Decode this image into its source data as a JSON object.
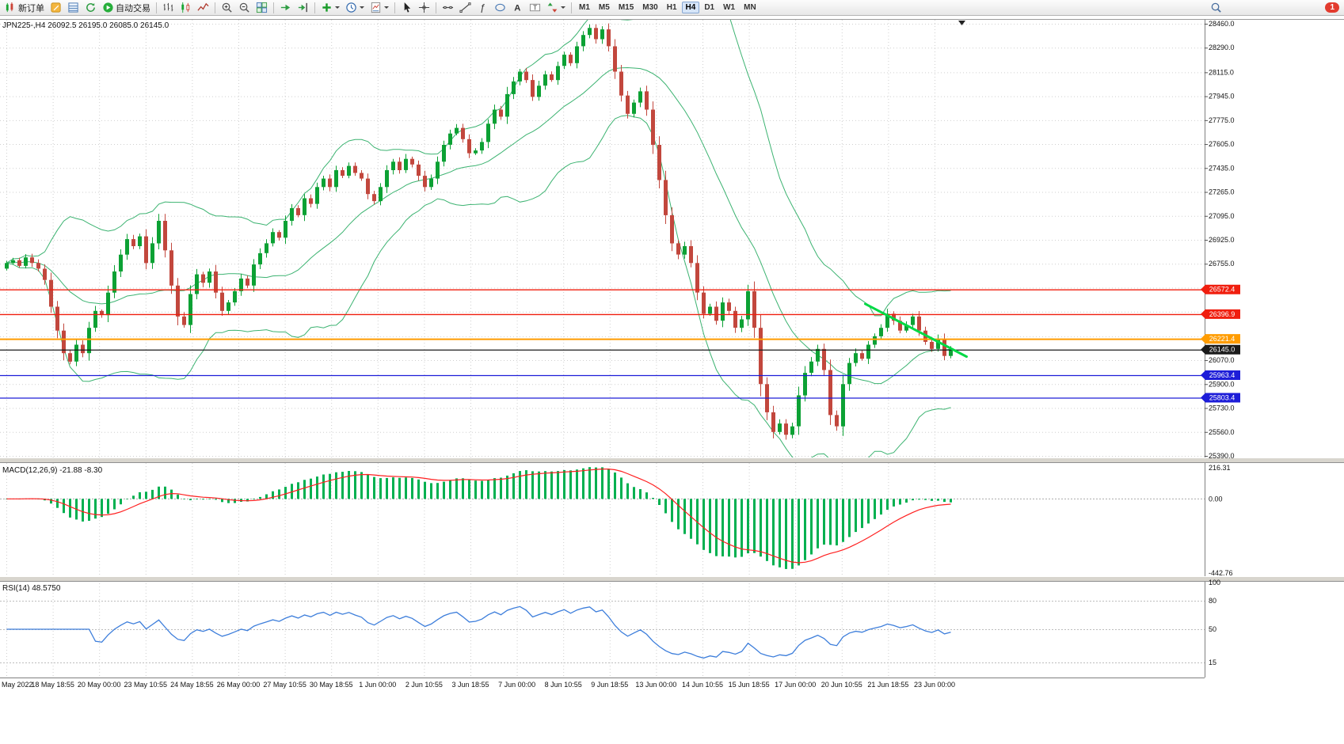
{
  "toolbar": {
    "buttons": [
      {
        "name": "new-order-button",
        "icon": "new-order-icon",
        "label": "新订单"
      },
      {
        "name": "metaeditor-button",
        "icon": "metaeditor-icon"
      },
      {
        "name": "market-watch-button",
        "icon": "market-watch-icon"
      },
      {
        "name": "refresh-button",
        "icon": "refresh-icon"
      },
      {
        "name": "autotrading-button",
        "icon": "autotrading-icon",
        "label": "自动交易"
      },
      {
        "sep": true
      },
      {
        "name": "bar-chart-button",
        "icon": "chart-bars-icon"
      },
      {
        "name": "candlestick-chart-button",
        "icon": "chart-candles-icon"
      },
      {
        "name": "line-chart-button",
        "icon": "chart-line-icon"
      },
      {
        "sep": true
      },
      {
        "name": "zoom-in-button",
        "icon": "zoom-in-icon"
      },
      {
        "name": "zoom-out-button",
        "icon": "zoom-out-icon"
      },
      {
        "name": "tile-windows-button",
        "icon": "tile-windows-icon"
      },
      {
        "sep": true
      },
      {
        "name": "auto-scroll-button",
        "icon": "auto-scroll-icon"
      },
      {
        "name": "chart-shift-button",
        "icon": "chart-shift-icon"
      },
      {
        "sep": true
      },
      {
        "name": "indicators-button",
        "icon": "indicators-icon",
        "caret": true
      },
      {
        "name": "periods-button",
        "icon": "periods-icon",
        "caret": true
      },
      {
        "name": "templates-button",
        "icon": "templates-icon",
        "caret": true
      },
      {
        "sep": true
      },
      {
        "name": "cursor-button",
        "icon": "cursor-icon"
      },
      {
        "name": "crosshair-button",
        "icon": "crosshair-icon"
      },
      {
        "sep": true
      },
      {
        "name": "horizontal-line-button",
        "icon": "hline-icon"
      },
      {
        "name": "trendline-button",
        "icon": "trendline-icon"
      },
      {
        "name": "fibonacci-button",
        "icon": "fibo-icon"
      },
      {
        "name": "shapes-button",
        "icon": "shapes-icon"
      },
      {
        "name": "text-button",
        "icon": "text-icon"
      },
      {
        "name": "label-button",
        "icon": "label-icon"
      },
      {
        "name": "arrows-button",
        "icon": "arrows-icon",
        "caret": true
      },
      {
        "sep": true
      }
    ],
    "timeframes": {
      "options": [
        "M1",
        "M5",
        "M15",
        "M30",
        "H1",
        "H4",
        "D1",
        "W1",
        "MN"
      ],
      "active": "H4"
    },
    "notification_count": "1"
  },
  "chart": {
    "header": {
      "symbol_period": "JPN225-,H4",
      "ohlc": "26092.5 26195.0 26085.0 26145.0"
    },
    "colors": {
      "up": "#0ca134",
      "down": "#c2473d",
      "bollinger": "#3cb371",
      "macd_hist": "#00b050",
      "macd_signal": "#ff2020",
      "rsi_line": "#3d7edb",
      "grid": "#cfcfcf",
      "trendline": "#00d944"
    }
  },
  "indicators": {
    "macd": {
      "label": "MACD(12,26,9)",
      "values": "-21.88 -8.30",
      "axis_labels": [
        "216.31",
        "0.00",
        "-442.76"
      ]
    },
    "rsi": {
      "label": "RSI(14)",
      "value": "48.5750",
      "axis_labels": [
        "100",
        "80",
        "50",
        "15"
      ]
    }
  },
  "chart_data": {
    "type": "candlestick",
    "symbol": "JPN225-",
    "timeframe": "H4",
    "last_ohlc": {
      "open": 26092.5,
      "high": 26195.0,
      "low": 26085.0,
      "close": 26145.0
    },
    "price_range": [
      25390.0,
      28460.0
    ],
    "first_open": 26720,
    "closes": [
      26760,
      26780,
      26740,
      26800,
      26760,
      26720,
      26640,
      26450,
      26280,
      26120,
      26060,
      26180,
      26120,
      26300,
      26420,
      26390,
      26550,
      26700,
      26820,
      26930,
      26880,
      26950,
      26760,
      26900,
      27060,
      26850,
      26600,
      26380,
      26320,
      26540,
      26680,
      26620,
      26700,
      26550,
      26420,
      26480,
      26560,
      26650,
      26600,
      26750,
      26830,
      26900,
      26980,
      26940,
      27060,
      27150,
      27100,
      27220,
      27180,
      27300,
      27360,
      27300,
      27420,
      27380,
      27450,
      27400,
      27360,
      27250,
      27200,
      27300,
      27420,
      27480,
      27420,
      27500,
      27460,
      27380,
      27300,
      27360,
      27480,
      27600,
      27680,
      27720,
      27640,
      27540,
      27560,
      27620,
      27750,
      27850,
      27800,
      27960,
      28050,
      28120,
      28060,
      27940,
      28020,
      28100,
      28060,
      28160,
      28240,
      28180,
      28300,
      28380,
      28430,
      28350,
      28420,
      28300,
      28120,
      27950,
      27820,
      27900,
      27980,
      27850,
      27600,
      27350,
      27100,
      26900,
      26820,
      26880,
      26760,
      26550,
      26400,
      26450,
      26350,
      26480,
      26420,
      26300,
      26360,
      26560,
      26300,
      25900,
      25700,
      25560,
      25620,
      25540,
      25600,
      25820,
      25980,
      26060,
      26150,
      26000,
      25680,
      25600,
      25900,
      26050,
      26120,
      26080,
      26180,
      26240,
      26300,
      26400,
      26350,
      26280,
      26320,
      26380,
      26280,
      26200,
      26150,
      26220,
      26100,
      26145
    ],
    "overlays": {
      "bollinger": {
        "period": 20,
        "deviation": 2
      }
    },
    "indicators": {
      "macd": {
        "fast": 12,
        "slow": 26,
        "signal": 9,
        "current_macd": -21.88,
        "current_signal": -8.3
      },
      "rsi": {
        "period": 14,
        "current": 48.575,
        "levels": [
          80,
          50,
          15
        ]
      }
    },
    "hlines": [
      {
        "price": 26572.4,
        "label": "26572.4",
        "color": "#f01e0e",
        "kind": "resistance"
      },
      {
        "price": 26396.9,
        "label": "26396.9",
        "color": "#f01e0e",
        "kind": "resistance"
      },
      {
        "price": 26221.4,
        "label": "26221.4",
        "color": "#ff9c00",
        "kind": "level"
      },
      {
        "price": 26145.0,
        "label": "26145.0",
        "color": "#1a1a1a",
        "kind": "current-price"
      },
      {
        "price": 25963.4,
        "label": "25963.4",
        "color": "#1d1dd8",
        "kind": "support"
      },
      {
        "price": 25803.4,
        "label": "25803.4",
        "color": "#1d1dd8",
        "kind": "support"
      }
    ],
    "trendline": {
      "from": {
        "index": 135.5,
        "price": 26470
      },
      "to": {
        "index": 151.5,
        "price": 26095
      },
      "color": "#00d944"
    },
    "x_labels": [
      "May 2022",
      "18 May 18:55",
      "20 May 00:00",
      "23 May 10:55",
      "24 May 18:55",
      "26 May 00:00",
      "27 May 10:55",
      "30 May 18:55",
      "1 Jun 00:00",
      "2 Jun 10:55",
      "3 Jun 18:55",
      "7 Jun 00:00",
      "8 Jun 10:55",
      "9 Jun 18:55",
      "13 Jun 00:00",
      "14 Jun 10:55",
      "15 Jun 18:55",
      "17 Jun 00:00",
      "20 Jun 10:55",
      "21 Jun 18:55",
      "23 Jun 00:00"
    ],
    "y_ticks": [
      "28460.0",
      "28290.0",
      "28115.0",
      "27945.0",
      "27775.0",
      "27605.0",
      "27435.0",
      "27265.0",
      "27095.0",
      "26925.0",
      "26755.0",
      "26070.0",
      "25900.0",
      "25730.0",
      "25560.0",
      "25390.0"
    ],
    "y_grid_hidden": [
      26585,
      26415,
      26240
    ]
  }
}
